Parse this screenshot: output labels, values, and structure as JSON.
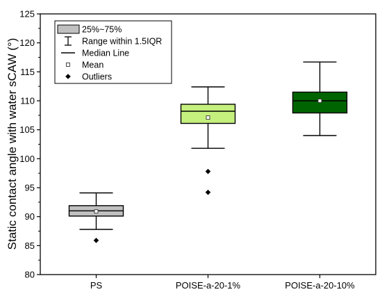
{
  "chart_data": {
    "type": "box",
    "ylabel": "Static contact angle with water sCAW (°)",
    "ylim": [
      80,
      125
    ],
    "yticks": [
      80,
      85,
      90,
      95,
      100,
      105,
      110,
      115,
      120,
      125
    ],
    "categories": [
      "PS",
      "POISE-a-20-1%",
      "POISE-a-20-10%"
    ],
    "boxes": [
      {
        "category": "PS",
        "whisker_low": 87.8,
        "q1": 90.1,
        "median": 91.0,
        "q3": 91.9,
        "whisker_high": 94.1,
        "mean": 90.9,
        "outliers": [
          85.9
        ],
        "fill": "#c0c0c0"
      },
      {
        "category": "POISE-a-20-1%",
        "whisker_low": 101.8,
        "q1": 106.1,
        "median": 108.2,
        "q3": 109.4,
        "whisker_high": 112.4,
        "mean": 107.1,
        "outliers": [
          97.8,
          94.2
        ],
        "fill": "#c5f07e"
      },
      {
        "category": "POISE-a-20-10%",
        "whisker_low": 104.0,
        "q1": 107.9,
        "median": 110.0,
        "q3": 111.5,
        "whisker_high": 116.7,
        "mean": 110.0,
        "outliers": [],
        "fill": "#006400"
      }
    ],
    "grid": false,
    "legend": {
      "placement": "top-left",
      "items": [
        {
          "symbol": "box",
          "label": "25%~75%"
        },
        {
          "symbol": "whisker",
          "label": "Range within 1.5IQR"
        },
        {
          "symbol": "line",
          "label": "Median Line"
        },
        {
          "symbol": "mean",
          "label": "Mean"
        },
        {
          "symbol": "outlier",
          "label": "Outliers"
        }
      ]
    }
  }
}
